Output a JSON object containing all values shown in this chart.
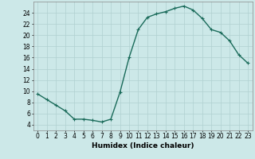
{
  "x": [
    0,
    1,
    2,
    3,
    4,
    5,
    6,
    7,
    8,
    9,
    10,
    11,
    12,
    13,
    14,
    15,
    16,
    17,
    18,
    19,
    20,
    21,
    22,
    23
  ],
  "y": [
    9.5,
    8.5,
    7.5,
    6.5,
    5.0,
    5.0,
    4.8,
    4.5,
    5.0,
    9.8,
    16.0,
    21.0,
    23.2,
    23.8,
    24.2,
    24.8,
    25.2,
    24.5,
    23.0,
    21.0,
    20.5,
    19.0,
    16.5,
    15.0
  ],
  "line_color": "#1a6b5a",
  "bg_color": "#cce8e8",
  "grid_color": "#b0d0d0",
  "xlabel": "Humidex (Indice chaleur)",
  "ylim": [
    3,
    26
  ],
  "xlim": [
    -0.5,
    23.5
  ],
  "yticks": [
    4,
    6,
    8,
    10,
    12,
    14,
    16,
    18,
    20,
    22,
    24
  ],
  "xticks": [
    0,
    1,
    2,
    3,
    4,
    5,
    6,
    7,
    8,
    9,
    10,
    11,
    12,
    13,
    14,
    15,
    16,
    17,
    18,
    19,
    20,
    21,
    22,
    23
  ],
  "xlabel_fontsize": 6.5,
  "tick_fontsize": 5.5,
  "marker": "+",
  "marker_size": 3,
  "linewidth": 1.0
}
